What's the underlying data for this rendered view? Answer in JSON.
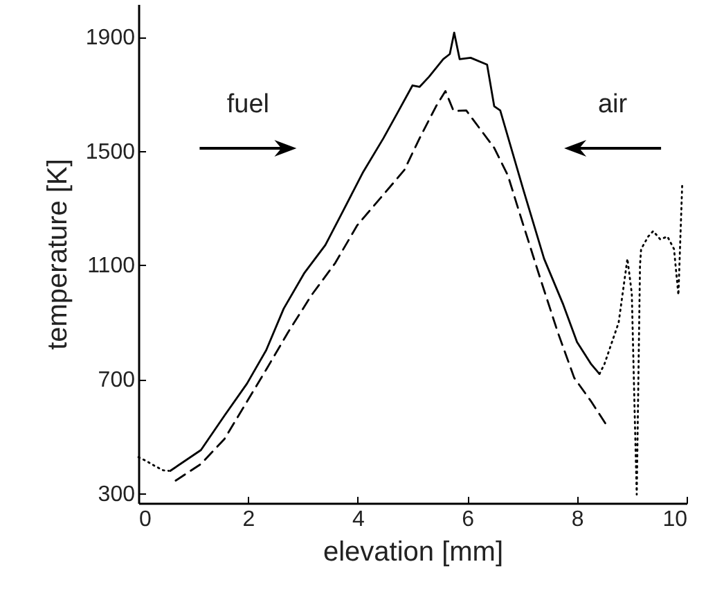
{
  "chart_data": {
    "type": "line",
    "xlabel": "elevation [mm]",
    "ylabel": "temperature [K]",
    "xlim": [
      0,
      10
    ],
    "ylim": [
      265,
      2015
    ],
    "xticks": [
      0,
      2,
      4,
      6,
      8,
      10
    ],
    "yticks": [
      300,
      700,
      1100,
      1500,
      1900
    ],
    "marker": "none",
    "annotations": [
      "fuel",
      "air"
    ],
    "series": [
      {
        "color": "#000000",
        "line_style": "solid",
        "x": [
          0.58,
          1.14,
          1.57,
          1.98,
          2.33,
          2.65,
          3.03,
          3.41,
          3.74,
          4.09,
          4.47,
          4.72,
          5.0,
          5.13,
          5.3,
          5.56,
          5.68,
          5.76,
          5.86,
          6.06,
          6.36,
          6.49,
          6.6,
          7.02,
          7.4,
          7.75,
          8.0,
          8.26,
          8.41
        ],
        "values": [
          378,
          451,
          572,
          684,
          801,
          947,
          1073,
          1170,
          1292,
          1423,
          1545,
          1632,
          1730,
          1725,
          1760,
          1822,
          1840,
          1915,
          1822,
          1827,
          1803,
          1657,
          1642,
          1365,
          1122,
          961,
          830,
          752,
          718
        ]
      },
      {
        "color": "#000000",
        "line_style": "dashed",
        "x": [
          0.68,
          1.14,
          1.57,
          1.98,
          2.33,
          2.73,
          3.16,
          3.59,
          3.99,
          4.42,
          4.85,
          5.13,
          5.43,
          5.6,
          5.75,
          5.98,
          6.49,
          6.74,
          7.0,
          7.32,
          7.65,
          7.95,
          8.26,
          8.54
        ],
        "values": [
          344,
          402,
          490,
          621,
          733,
          864,
          995,
          1107,
          1239,
          1336,
          1433,
          1545,
          1657,
          1710,
          1640,
          1642,
          1511,
          1414,
          1253,
          1059,
          864,
          704,
          621,
          538
        ]
      },
      {
        "color": "#000000",
        "line_style": "dotted",
        "x": [
          0,
          0.15,
          0.3,
          0.45,
          0.55
        ],
        "values": [
          426,
          412,
          395,
          380,
          378
        ]
      },
      {
        "color": "#000000",
        "line_style": "dotted",
        "x": [
          8.41,
          8.5,
          8.76,
          8.92,
          9.0,
          9.05,
          9.09,
          9.12,
          9.15,
          9.17,
          9.3,
          9.39,
          9.52,
          9.65,
          9.77,
          9.85,
          9.92
        ],
        "values": [
          718,
          752,
          898,
          1122,
          1000,
          600,
          295,
          700,
          1100,
          1156,
          1200,
          1219,
          1190,
          1200,
          1156,
          995,
          1384
        ]
      }
    ]
  }
}
